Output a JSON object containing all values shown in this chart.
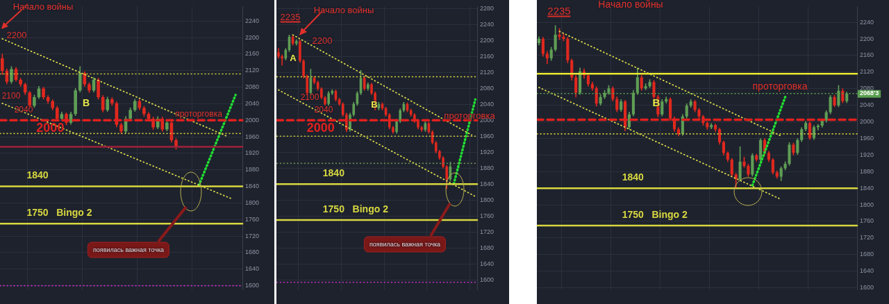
{
  "chart_data": [
    {
      "type": "candlestick",
      "grid": true,
      "categories": [
        null,
        null,
        null,
        null,
        null,
        null,
        null,
        null,
        null,
        null,
        null,
        null,
        null,
        null,
        null,
        null,
        null,
        null,
        null,
        null,
        null,
        null,
        null,
        null,
        null,
        null,
        null,
        null,
        null,
        null,
        null,
        null,
        null,
        null,
        null,
        null,
        null,
        null,
        null,
        null,
        null,
        null,
        null,
        null,
        null,
        null,
        null,
        null,
        null,
        null,
        null,
        null,
        null
      ],
      "ohlc": [
        [
          2150,
          2160,
          2110,
          2119
        ],
        [
          2119,
          2124,
          2088,
          2093
        ],
        [
          2093,
          2130,
          2089,
          2124
        ],
        [
          2124,
          2128,
          2094,
          2098
        ],
        [
          2098,
          2102,
          2082,
          2087
        ],
        [
          2087,
          2090,
          2062,
          2067
        ],
        [
          2067,
          2070,
          2030,
          2035
        ],
        [
          2035,
          2061,
          2031,
          2056
        ],
        [
          2056,
          2082,
          2052,
          2077
        ],
        [
          2077,
          2080,
          2051,
          2056
        ],
        [
          2056,
          2060,
          2041,
          2046
        ],
        [
          2046,
          2050,
          2025,
          2030
        ],
        [
          2030,
          2034,
          1999,
          2004
        ],
        [
          2004,
          2020,
          2000,
          2015
        ],
        [
          2015,
          2018,
          1989,
          1994
        ],
        [
          1994,
          2020,
          1990,
          2015
        ],
        [
          2015,
          2077,
          2011,
          2072
        ],
        [
          2072,
          2130,
          2068,
          2114
        ],
        [
          2114,
          2118,
          2082,
          2087
        ],
        [
          2087,
          2091,
          2067,
          2072
        ],
        [
          2072,
          2103,
          2068,
          2098
        ],
        [
          2098,
          2102,
          2051,
          2056
        ],
        [
          2056,
          2060,
          2020,
          2025
        ],
        [
          2025,
          2056,
          2021,
          2051
        ],
        [
          2051,
          2055,
          2036,
          2041
        ],
        [
          2041,
          2045,
          1984,
          1989
        ],
        [
          1989,
          1993,
          1968,
          1973
        ],
        [
          1973,
          2009,
          1969,
          2004
        ],
        [
          2004,
          2030,
          2000,
          2025
        ],
        [
          2025,
          2051,
          2021,
          2046
        ],
        [
          2046,
          2050,
          2025,
          2030
        ],
        [
          2030,
          2034,
          2010,
          2015
        ],
        [
          2015,
          2019,
          1999,
          2004
        ],
        [
          2004,
          2008,
          1978,
          1983
        ],
        [
          1983,
          2009,
          1979,
          2004
        ],
        [
          2004,
          2008,
          1973,
          1978
        ],
        [
          1978,
          1999,
          1974,
          1994
        ],
        [
          1994,
          1998,
          1947,
          1952
        ],
        [
          1952,
          1956,
          1930,
          1936
        ],
        null,
        null,
        null,
        null,
        null,
        null,
        null,
        null,
        null,
        null,
        null,
        null,
        null,
        null
      ],
      "series": [
        {
          "type": "line",
          "color": "#d8d84a",
          "line_style": "dotted",
          "values": [
            2197,
            null,
            null,
            null,
            null,
            null,
            null,
            null,
            null,
            null,
            null,
            null,
            null,
            null,
            null,
            null,
            null,
            null,
            null,
            null,
            null,
            null,
            null,
            null,
            null,
            null,
            null,
            null,
            null,
            null,
            null,
            null,
            null,
            null,
            null,
            null,
            null,
            null,
            null,
            null,
            null,
            null,
            null,
            null,
            null,
            null,
            null,
            null,
            null,
            1962,
            null,
            null,
            null
          ]
        },
        {
          "type": "line",
          "color": "#d8d84a",
          "line_style": "dotted",
          "values": [
            2041,
            null,
            null,
            null,
            null,
            null,
            null,
            null,
            null,
            null,
            null,
            null,
            null,
            null,
            null,
            null,
            null,
            null,
            null,
            null,
            null,
            null,
            null,
            null,
            null,
            null,
            null,
            null,
            null,
            null,
            null,
            null,
            null,
            null,
            null,
            null,
            null,
            null,
            null,
            null,
            null,
            null,
            null,
            null,
            null,
            null,
            null,
            null,
            null,
            null,
            1811,
            null,
            null
          ]
        },
        {
          "type": "line",
          "color": "#22dd33",
          "line_style": "dotted",
          "values": [
            null,
            null,
            null,
            null,
            null,
            null,
            null,
            null,
            null,
            null,
            null,
            null,
            null,
            null,
            null,
            null,
            null,
            null,
            null,
            null,
            null,
            null,
            null,
            null,
            null,
            null,
            null,
            null,
            null,
            null,
            null,
            null,
            null,
            null,
            null,
            null,
            null,
            null,
            null,
            null,
            null,
            null,
            null,
            1843,
            null,
            null,
            null,
            null,
            null,
            null,
            null,
            2061,
            null
          ]
        }
      ],
      "ylim": [
        1590,
        2275
      ],
      "yticks": [
        1600,
        1640,
        1680,
        1720,
        1760,
        1800,
        1840,
        1880,
        1920,
        1960,
        2000,
        2040,
        2080,
        2120,
        2160,
        2200,
        2240
      ],
      "ref_lines": [
        {
          "axis": "y",
          "value": 2112,
          "color": "#c8c83c",
          "line_style": "dotted"
        },
        {
          "axis": "y",
          "value": 2000,
          "label": "2000",
          "color": "#e0201e",
          "line_style": "dashed"
        },
        {
          "axis": "y",
          "value": 1968,
          "color": "#c8c83c",
          "line_style": "dotted"
        },
        {
          "axis": "y",
          "value": 1936,
          "color": "#a0203a",
          "line_style": "solid"
        },
        {
          "axis": "y",
          "value": 1840,
          "label": "1840",
          "color": "#d8d840",
          "line_style": "solid"
        },
        {
          "axis": "y",
          "value": 1750,
          "label": "1750   Bingo 2",
          "color": "#d8d840",
          "line_style": "solid"
        },
        {
          "axis": "y",
          "value": 1600,
          "color": "#c030c0",
          "line_style": "dotted"
        }
      ],
      "annotations": [
        "Начало войны",
        "2200",
        "2100",
        "2040",
        "B",
        "проторговка",
        "появилась важная точка"
      ]
    },
    {
      "type": "candlestick",
      "grid": true,
      "categories": [
        null,
        null,
        null,
        null,
        null,
        null,
        null,
        null,
        null,
        null,
        null,
        null,
        null,
        null,
        null,
        null,
        null,
        null,
        null,
        null,
        null,
        null,
        null,
        null,
        null,
        null,
        null,
        null,
        null,
        null,
        null,
        null,
        null,
        null,
        null,
        null,
        null,
        null,
        null,
        null,
        null,
        null,
        null,
        null,
        null,
        null,
        null,
        null,
        null,
        null,
        null,
        null,
        null,
        null,
        null,
        null
      ],
      "ohlc": [
        [
          2170,
          2180,
          2155,
          2160
        ],
        [
          2160,
          2164,
          2138,
          2155
        ],
        [
          2155,
          2180,
          2151,
          2176
        ],
        [
          2176,
          2214,
          2172,
          2209
        ],
        [
          2209,
          2212,
          2188,
          2192
        ],
        [
          2192,
          2202,
          2188,
          2198
        ],
        [
          2198,
          2201,
          2145,
          2149
        ],
        [
          2149,
          2152,
          2106,
          2111
        ],
        [
          2111,
          2114,
          2064,
          2068
        ],
        [
          2068,
          2128,
          2064,
          2106
        ],
        [
          2106,
          2110,
          2091,
          2095
        ],
        [
          2095,
          2098,
          2075,
          2079
        ],
        [
          2079,
          2082,
          2053,
          2057
        ],
        [
          2057,
          2060,
          2037,
          2041
        ],
        [
          2041,
          2072,
          2037,
          2068
        ],
        [
          2068,
          2077,
          2064,
          2073
        ],
        [
          2073,
          2076,
          2048,
          2052
        ],
        [
          2052,
          2055,
          2037,
          2041
        ],
        [
          2041,
          2044,
          2010,
          2014
        ],
        [
          2014,
          2018,
          1971,
          1976
        ],
        [
          1976,
          2018,
          1972,
          2014
        ],
        [
          2014,
          2045,
          2010,
          2041
        ],
        [
          2041,
          2072,
          2037,
          2068
        ],
        [
          2068,
          2125,
          2064,
          2106
        ],
        [
          2106,
          2110,
          2075,
          2079
        ],
        [
          2079,
          2094,
          2075,
          2090
        ],
        [
          2090,
          2093,
          2064,
          2068
        ],
        [
          2068,
          2071,
          2026,
          2030
        ],
        [
          2030,
          2045,
          2026,
          2041
        ],
        [
          2041,
          2044,
          2026,
          2030
        ],
        [
          2030,
          2033,
          2010,
          2014
        ],
        [
          2014,
          2017,
          1978,
          1982
        ],
        [
          1982,
          1985,
          1967,
          1971
        ],
        [
          1971,
          2002,
          1967,
          1998
        ],
        [
          1998,
          2029,
          1994,
          2025
        ],
        [
          2025,
          2045,
          2021,
          2041
        ],
        [
          2041,
          2044,
          2021,
          2025
        ],
        [
          2025,
          2028,
          2010,
          2014
        ],
        [
          2014,
          2017,
          1994,
          1998
        ],
        [
          1998,
          2001,
          1978,
          1982
        ],
        [
          1982,
          1985,
          1972,
          1976
        ],
        [
          1976,
          1996,
          1972,
          1992
        ],
        [
          1992,
          1995,
          1967,
          1971
        ],
        [
          1971,
          1974,
          1940,
          1944
        ],
        [
          1944,
          1947,
          1918,
          1922
        ],
        [
          1922,
          1925,
          1902,
          1906
        ],
        [
          1906,
          1909,
          1880,
          1884
        ],
        [
          1884,
          1887,
          1828,
          1852
        ],
        [
          1852,
          1895,
          1848,
          1884
        ],
        null,
        null,
        null,
        null,
        null,
        null,
        null
      ],
      "series": [
        {
          "type": "line",
          "color": "#d8d84a",
          "line_style": "dotted",
          "values": [
            null,
            null,
            null,
            null,
            2214,
            null,
            null,
            null,
            null,
            null,
            null,
            null,
            null,
            null,
            null,
            null,
            null,
            null,
            null,
            null,
            null,
            null,
            null,
            null,
            null,
            null,
            null,
            null,
            null,
            null,
            null,
            null,
            null,
            null,
            null,
            null,
            null,
            null,
            null,
            null,
            null,
            null,
            null,
            null,
            null,
            null,
            null,
            null,
            null,
            null,
            null,
            null,
            null,
            null,
            1963,
            null
          ]
        },
        {
          "type": "line",
          "color": "#d8d84a",
          "line_style": "dotted",
          "values": [
            2076,
            null,
            null,
            null,
            null,
            null,
            null,
            null,
            null,
            null,
            null,
            null,
            null,
            null,
            null,
            null,
            null,
            null,
            null,
            null,
            null,
            null,
            null,
            null,
            null,
            null,
            null,
            null,
            null,
            null,
            null,
            null,
            null,
            null,
            null,
            null,
            null,
            null,
            null,
            null,
            null,
            null,
            null,
            null,
            null,
            null,
            null,
            null,
            null,
            null,
            null,
            null,
            null,
            null,
            null,
            1809
          ]
        },
        {
          "type": "line",
          "color": "#22dd33",
          "line_style": "dotted",
          "values": [
            null,
            null,
            null,
            null,
            null,
            null,
            null,
            null,
            null,
            null,
            null,
            null,
            null,
            null,
            null,
            null,
            null,
            null,
            null,
            null,
            null,
            null,
            null,
            null,
            null,
            null,
            null,
            null,
            null,
            null,
            null,
            null,
            null,
            null,
            null,
            null,
            null,
            null,
            null,
            null,
            null,
            null,
            null,
            null,
            null,
            null,
            null,
            null,
            null,
            1841,
            null,
            null,
            null,
            null,
            null,
            2052
          ]
        }
      ],
      "ylim": [
        1575,
        2285
      ],
      "yticks": [
        1600,
        1640,
        1680,
        1720,
        1760,
        1800,
        1840,
        1880,
        1920,
        1960,
        2000,
        2040,
        2080,
        2120,
        2160,
        2200,
        2240,
        2280
      ],
      "ref_lines": [
        {
          "axis": "y",
          "value": 2109,
          "color": "#c8c83c",
          "line_style": "dotted"
        },
        {
          "axis": "y",
          "value": 2000,
          "label": "2000",
          "color": "#e0201e",
          "line_style": "dashed"
        },
        {
          "axis": "y",
          "value": 1960,
          "color": "#c8c83c",
          "line_style": "dotted"
        },
        {
          "axis": "y",
          "value": 1892,
          "color": "#6a8a50",
          "line_style": "dotted"
        },
        {
          "axis": "y",
          "value": 1840,
          "label": "1840",
          "color": "#d8d840",
          "line_style": "solid"
        },
        {
          "axis": "y",
          "value": 1750,
          "label": "1750   Bingo 2",
          "color": "#d8d840",
          "line_style": "solid"
        },
        {
          "axis": "y",
          "value": 1594,
          "color": "#c030c0",
          "line_style": "dotted"
        }
      ],
      "annotations": [
        "Начало войны",
        "2235",
        "2200",
        "A",
        "2100",
        "2040",
        "B",
        "проторговка",
        "появилась важная точка"
      ]
    },
    {
      "type": "candlestick",
      "grid": true,
      "categories": [
        null,
        null,
        null,
        null,
        null,
        null,
        null,
        null,
        null,
        null,
        null,
        null,
        null,
        null,
        null,
        null,
        null,
        null,
        null,
        null,
        null,
        null,
        null,
        null,
        null,
        null,
        null,
        null,
        null,
        null,
        null,
        null,
        null,
        null,
        null,
        null,
        null,
        null,
        null,
        null,
        null,
        null,
        null,
        null,
        null,
        null,
        null,
        null,
        null,
        null,
        null,
        null,
        null,
        null,
        null,
        null,
        null,
        null,
        null,
        null,
        null,
        null,
        null,
        null,
        null,
        null,
        null,
        null,
        null,
        null,
        null,
        null,
        null,
        null,
        null,
        null,
        null,
        null
      ],
      "ohlc": [
        [
          2190,
          2205,
          2185,
          2200
        ],
        [
          2200,
          2204,
          2158,
          2164
        ],
        [
          2164,
          2170,
          2140,
          2153
        ],
        [
          2153,
          2180,
          2148,
          2174
        ],
        [
          2174,
          2232,
          2170,
          2210
        ],
        [
          2210,
          2225,
          2198,
          2205
        ],
        [
          2205,
          2212,
          2195,
          2200
        ],
        [
          2200,
          2204,
          2142,
          2148
        ],
        [
          2148,
          2152,
          2100,
          2107
        ],
        [
          2107,
          2112,
          2060,
          2070
        ],
        [
          2070,
          2130,
          2066,
          2122
        ],
        [
          2122,
          2128,
          2105,
          2112
        ],
        [
          2112,
          2116,
          2086,
          2091
        ],
        [
          2091,
          2096,
          2076,
          2081
        ],
        [
          2081,
          2085,
          2038,
          2044
        ],
        [
          2044,
          2066,
          2040,
          2060
        ],
        [
          2060,
          2076,
          2056,
          2070
        ],
        [
          2070,
          2088,
          2066,
          2081
        ],
        [
          2081,
          2085,
          2050,
          2055
        ],
        [
          2055,
          2060,
          2024,
          2029
        ],
        [
          2029,
          2054,
          2025,
          2049
        ],
        [
          2049,
          2052,
          1978,
          1987
        ],
        [
          1987,
          2024,
          1982,
          2018
        ],
        [
          2018,
          2076,
          2014,
          2070
        ],
        [
          2070,
          2130,
          2066,
          2107
        ],
        [
          2107,
          2112,
          2076,
          2081
        ],
        [
          2081,
          2092,
          2077,
          2086
        ],
        [
          2086,
          2102,
          2082,
          2096
        ],
        [
          2096,
          2100,
          2055,
          2060
        ],
        [
          2060,
          2064,
          2012,
          2018
        ],
        [
          2018,
          2054,
          2014,
          2049
        ],
        [
          2049,
          2060,
          2045,
          2055
        ],
        [
          2055,
          2058,
          2003,
          2008
        ],
        [
          2008,
          2012,
          1977,
          1982
        ],
        [
          1982,
          1986,
          1966,
          1971
        ],
        [
          1971,
          2018,
          1967,
          2013
        ],
        [
          2013,
          2044,
          2009,
          2039
        ],
        [
          2039,
          2054,
          2035,
          2049
        ],
        [
          2049,
          2052,
          2024,
          2029
        ],
        [
          2029,
          2032,
          2008,
          2013
        ],
        [
          2013,
          2016,
          1992,
          1997
        ],
        [
          1997,
          2000,
          1982,
          1987
        ],
        [
          1987,
          1996,
          1983,
          1992
        ],
        [
          1992,
          1995,
          1977,
          1982
        ],
        [
          1982,
          1985,
          1946,
          1951
        ],
        [
          1951,
          1954,
          1920,
          1925
        ],
        [
          1925,
          1928,
          1904,
          1909
        ],
        [
          1909,
          1912,
          1868,
          1873
        ],
        [
          1873,
          1876,
          1840,
          1862
        ],
        [
          1862,
          1940,
          1858,
          1904
        ],
        [
          1904,
          1915,
          1890,
          1894
        ],
        [
          1894,
          1898,
          1868,
          1873
        ],
        [
          1873,
          1924,
          1869,
          1919
        ],
        [
          1919,
          1922,
          1905,
          1909
        ],
        [
          1909,
          1960,
          1905,
          1956
        ],
        [
          1956,
          1960,
          1920,
          1925
        ],
        [
          1925,
          1929,
          1904,
          1909
        ],
        [
          1909,
          1912,
          1874,
          1878
        ],
        [
          1878,
          1882,
          1864,
          1868
        ],
        [
          1868,
          1892,
          1858,
          1888
        ],
        [
          1888,
          1904,
          1884,
          1899
        ],
        [
          1899,
          1950,
          1895,
          1945
        ],
        [
          1945,
          1949,
          1920,
          1925
        ],
        [
          1925,
          1960,
          1921,
          1956
        ],
        [
          1956,
          1986,
          1952,
          1982
        ],
        [
          1982,
          2001,
          1978,
          1997
        ],
        [
          1997,
          2000,
          1957,
          1961
        ],
        [
          1961,
          1991,
          1957,
          1987
        ],
        [
          1987,
          1994,
          1980,
          1991
        ],
        [
          1991,
          2007,
          1987,
          2003
        ],
        [
          2003,
          2027,
          1999,
          2023
        ],
        [
          2023,
          2064,
          2019,
          2060
        ],
        [
          2060,
          2064,
          2036,
          2040
        ],
        [
          2040,
          2088,
          2036,
          2075
        ],
        [
          2075,
          2080,
          2046,
          2050
        ],
        [
          2050,
          2072,
          2046,
          2068
        ],
        null,
        null
      ],
      "series": [
        {
          "type": "line",
          "color": "#d8d84a",
          "line_style": "dotted",
          "values": [
            null,
            null,
            null,
            null,
            null,
            2218,
            null,
            null,
            null,
            null,
            null,
            null,
            null,
            null,
            null,
            null,
            null,
            null,
            null,
            null,
            null,
            null,
            null,
            null,
            null,
            null,
            null,
            null,
            null,
            null,
            null,
            null,
            null,
            null,
            null,
            null,
            null,
            null,
            null,
            null,
            null,
            null,
            null,
            null,
            null,
            null,
            null,
            null,
            null,
            null,
            null,
            null,
            null,
            null,
            null,
            null,
            null,
            null,
            null,
            1966,
            null,
            null,
            null,
            null,
            null,
            null,
            null,
            null,
            null,
            null,
            null,
            null,
            null,
            null,
            null,
            null,
            null,
            null
          ]
        },
        {
          "type": "line",
          "color": "#d8d84a",
          "line_style": "dotted",
          "values": [
            2083,
            null,
            null,
            null,
            null,
            null,
            null,
            null,
            null,
            null,
            null,
            null,
            null,
            null,
            null,
            null,
            null,
            null,
            null,
            null,
            null,
            null,
            null,
            null,
            null,
            null,
            null,
            null,
            null,
            null,
            null,
            null,
            null,
            null,
            null,
            null,
            null,
            null,
            null,
            null,
            null,
            null,
            null,
            null,
            null,
            null,
            null,
            null,
            null,
            null,
            null,
            null,
            null,
            null,
            null,
            null,
            null,
            null,
            null,
            1813,
            null,
            null,
            null,
            null,
            null,
            null,
            null,
            null,
            null,
            null,
            null,
            null,
            null,
            null,
            null,
            null,
            null,
            null
          ]
        },
        {
          "type": "line",
          "color": "#22dd33",
          "line_style": "dotted",
          "values": [
            null,
            null,
            null,
            null,
            null,
            null,
            null,
            null,
            null,
            null,
            null,
            null,
            null,
            null,
            null,
            null,
            null,
            null,
            null,
            null,
            null,
            null,
            null,
            null,
            null,
            null,
            null,
            null,
            null,
            null,
            null,
            null,
            null,
            null,
            null,
            null,
            null,
            null,
            null,
            null,
            null,
            null,
            null,
            null,
            null,
            null,
            null,
            null,
            null,
            null,
            null,
            null,
            1847,
            null,
            null,
            null,
            null,
            null,
            null,
            null,
            2060,
            null,
            null,
            null,
            null,
            null,
            null,
            null,
            null,
            null,
            null,
            null,
            null,
            null,
            null,
            null,
            null,
            null
          ]
        }
      ],
      "ylim": [
        1595,
        2278
      ],
      "yticks": [
        1600,
        1640,
        1680,
        1720,
        1760,
        1800,
        1840,
        1880,
        1920,
        1960,
        2000,
        2040,
        2080,
        2120,
        2160,
        2200,
        2240
      ],
      "ref_lines": [
        {
          "axis": "y",
          "value": 2116,
          "color": "#e8e830",
          "line_style": "solid"
        },
        {
          "axis": "y",
          "value": 2068.3,
          "label": "2068'3",
          "color": "#5aa050",
          "line_style": "dotted"
        },
        {
          "axis": "y",
          "value": 2005,
          "color": "#e0201e",
          "line_style": "dashed"
        },
        {
          "axis": "y",
          "value": 1971,
          "color": "#c8c83c",
          "line_style": "dotted"
        },
        {
          "axis": "y",
          "value": 1840,
          "label": "1840",
          "color": "#d8d840",
          "line_style": "solid"
        },
        {
          "axis": "y",
          "value": 1750,
          "label": "1750   Bingo 2",
          "color": "#d8d840",
          "line_style": "solid"
        }
      ],
      "annotations": [
        "Начало войны",
        "2235",
        "B",
        "проторговка"
      ]
    }
  ]
}
